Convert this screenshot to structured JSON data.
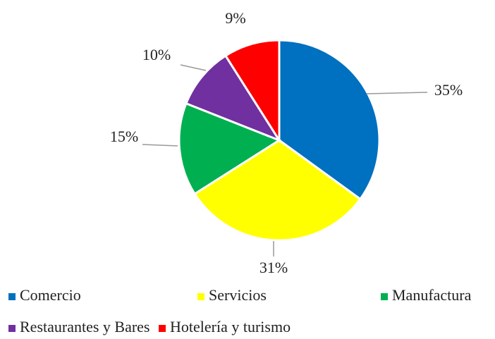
{
  "chart_data": {
    "type": "pie",
    "categories": [
      "Comercio",
      "Servicios",
      "Manufactura",
      "Restaurantes y Bares",
      "Hotelería y turismo"
    ],
    "values": [
      35,
      31,
      15,
      10,
      9
    ],
    "value_labels": [
      "35%",
      "31%",
      "15%",
      "10%",
      "9%"
    ],
    "colors": [
      "#0070C0",
      "#FFFF00",
      "#00B050",
      "#7030A0",
      "#FF0000"
    ],
    "legend": "bottom"
  }
}
